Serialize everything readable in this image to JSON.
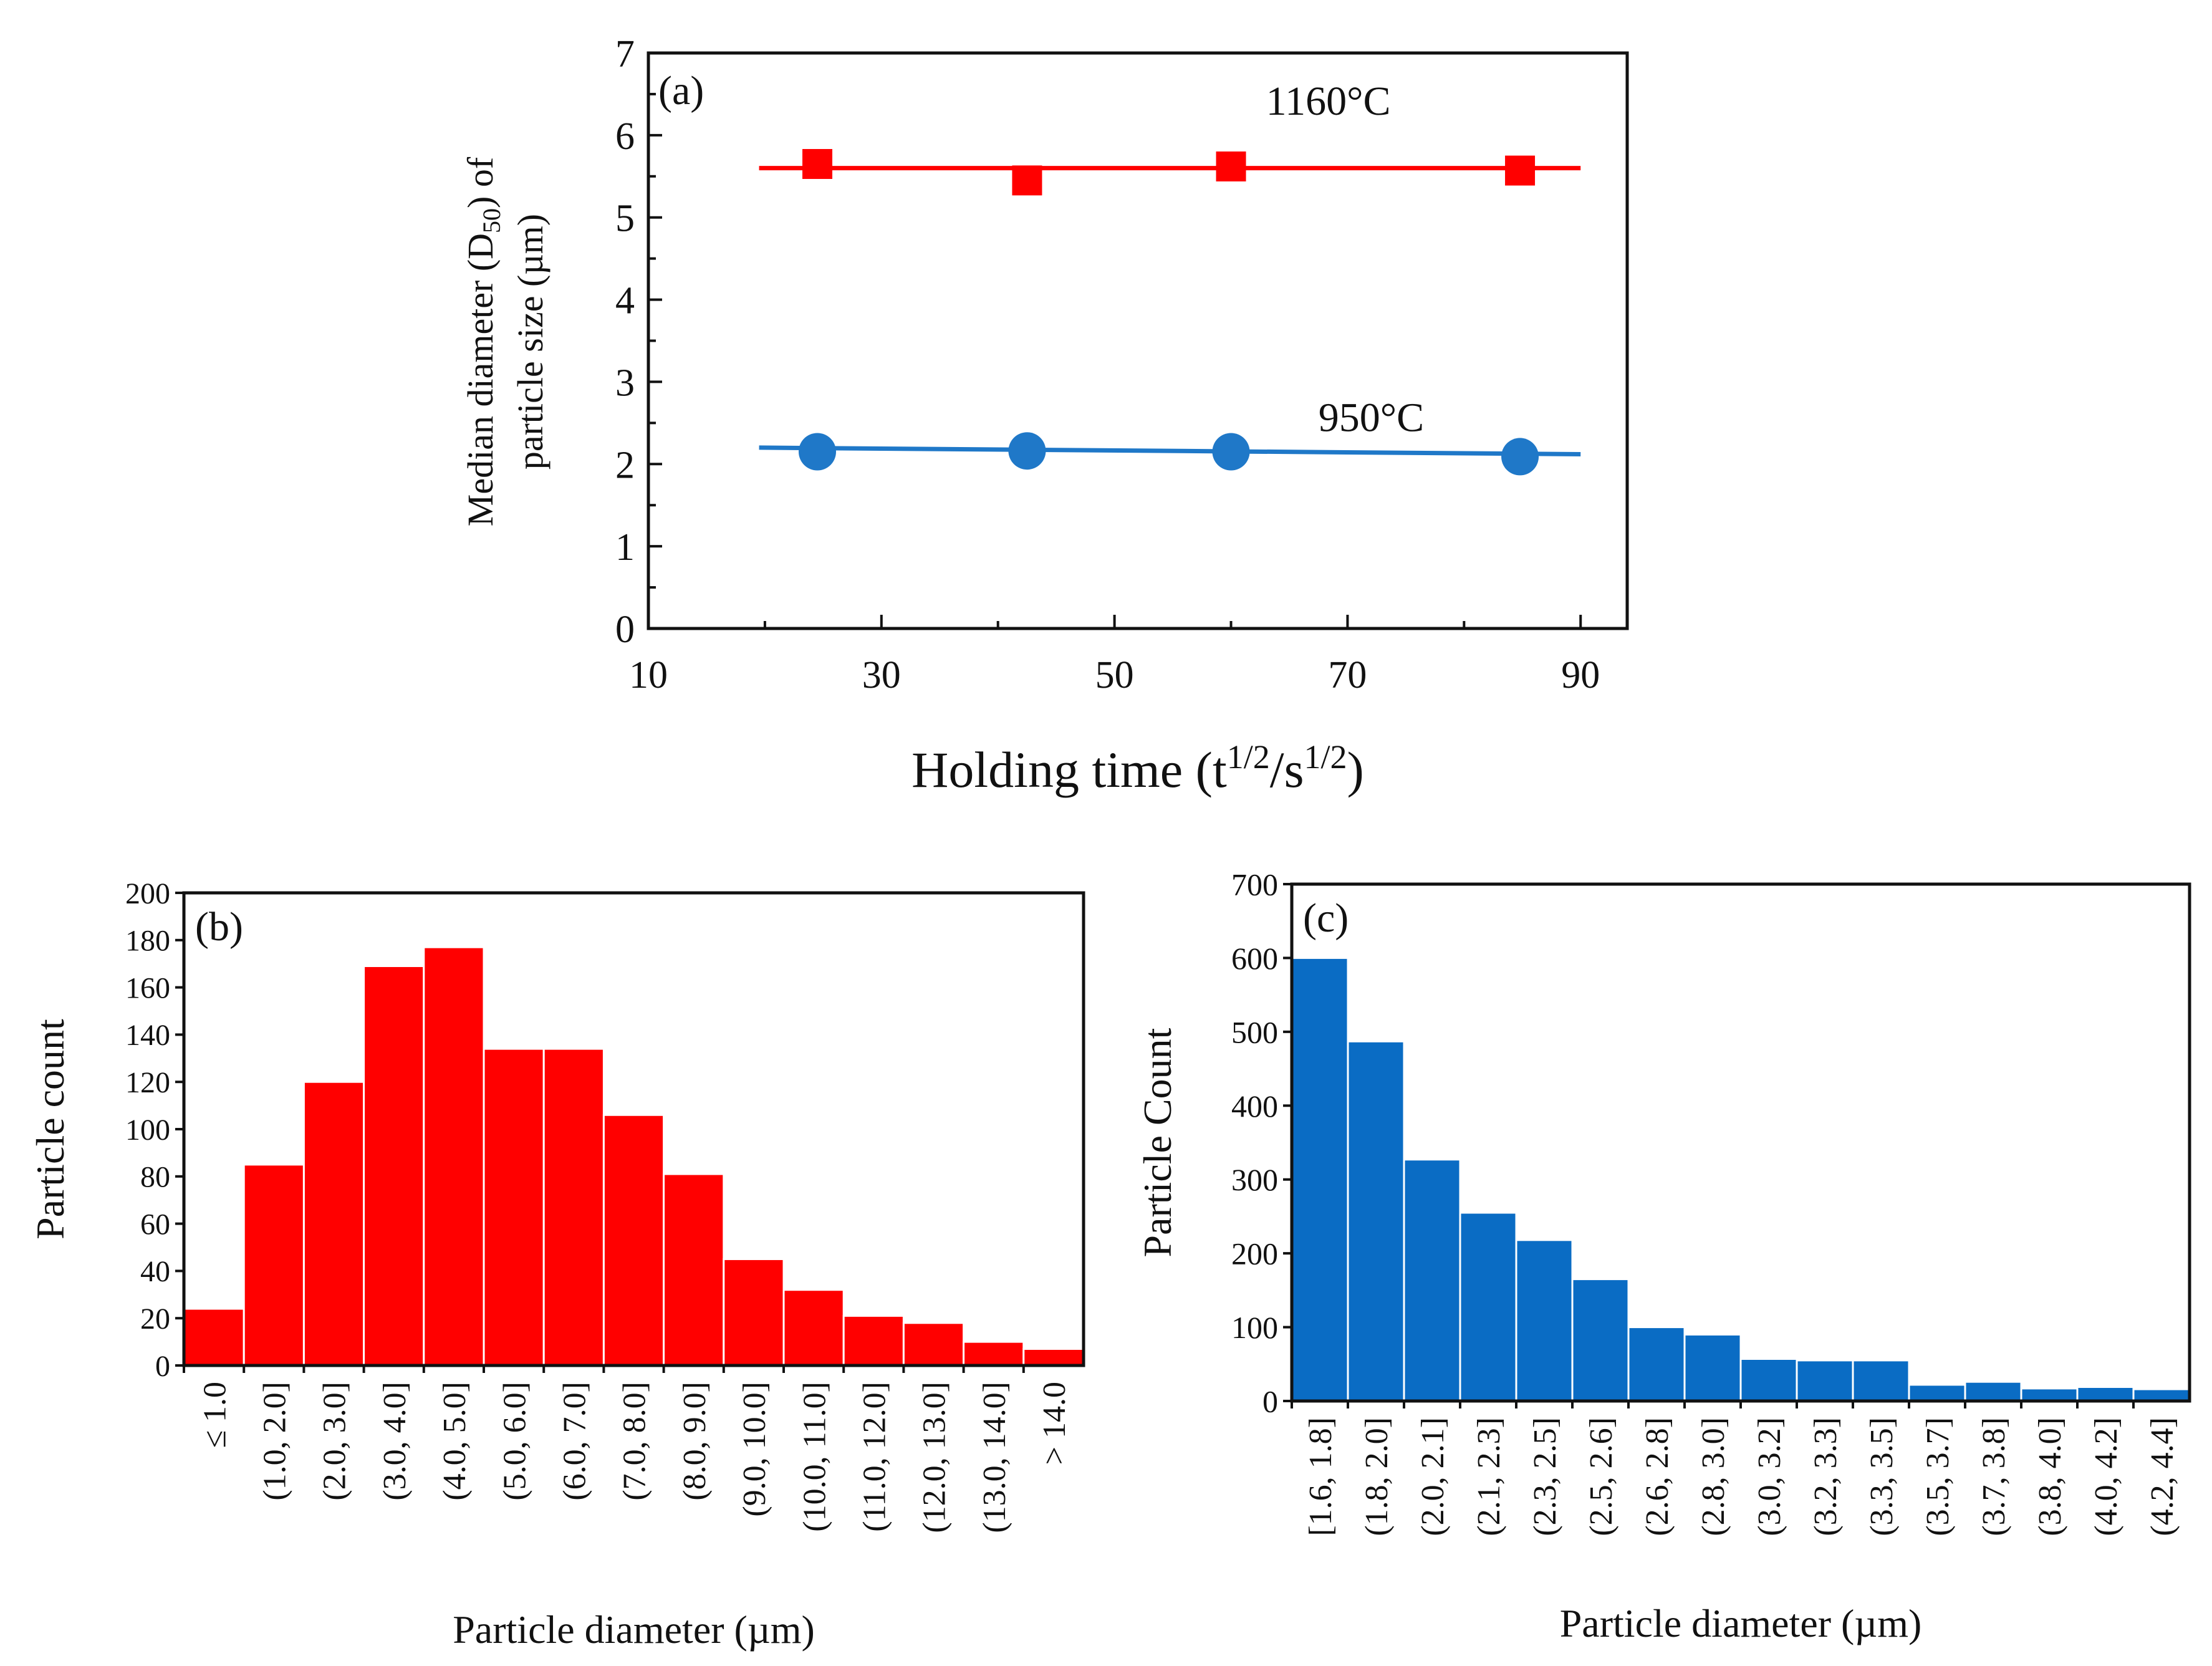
{
  "chart_data": [
    {
      "panel": "(a)",
      "type": "line",
      "title": "",
      "xlabel": "Holding time (t1/2/s1/2)",
      "ylabel_line1": "Median diameter (D50) of",
      "ylabel_line2": "particle size (µm)",
      "xlim": [
        10,
        94
      ],
      "ylim": [
        0,
        7
      ],
      "xticks": [
        "10",
        "30",
        "50",
        "70",
        "90"
      ],
      "yticks": [
        "0",
        "1",
        "2",
        "3",
        "4",
        "5",
        "6",
        "7"
      ],
      "series": [
        {
          "name": "1160°C",
          "color": "#ff0000",
          "marker": "square",
          "x": [
            24.5,
            42.5,
            60,
            84.8
          ],
          "y": [
            5.65,
            5.45,
            5.62,
            5.57
          ],
          "fit_x": [
            19.5,
            90
          ],
          "fit_y": [
            5.6,
            5.6
          ]
        },
        {
          "name": "950°C",
          "color": "#1f78c8",
          "marker": "circle",
          "x": [
            24.5,
            42.5,
            60,
            84.8
          ],
          "y": [
            2.15,
            2.16,
            2.15,
            2.09
          ],
          "fit_x": [
            19.5,
            90
          ],
          "fit_y": [
            2.2,
            2.12
          ]
        }
      ]
    },
    {
      "panel": "(b)",
      "type": "bar",
      "color": "#ff0000",
      "xlabel": "Particle diameter (µm)",
      "ylabel": "Particle count",
      "ylim": [
        0,
        200
      ],
      "yticks": [
        "0",
        "20",
        "40",
        "60",
        "80",
        "100",
        "120",
        "140",
        "160",
        "180",
        "200"
      ],
      "categories": [
        "≤ 1.0",
        "(1.0, 2.0]",
        "(2.0, 3.0]",
        "(3.0, 4.0]",
        "(4.0, 5.0]",
        "(5.0, 6.0]",
        "(6.0, 7.0]",
        "(7.0, 8.0]",
        "(8.0, 9.0]",
        "(9.0, 10.0]",
        "(10.0, 11.0]",
        "(11.0, 12.0]",
        "(12.0, 13.0]",
        "(13.0, 14.0]",
        "> 14.0"
      ],
      "values": [
        24,
        85,
        120,
        169,
        177,
        134,
        134,
        106,
        81,
        45,
        32,
        21,
        18,
        10,
        7
      ]
    },
    {
      "panel": "(c)",
      "type": "bar",
      "color": "#0a6cc4",
      "xlabel": "Particle diameter (µm)",
      "ylabel": "Particle Count",
      "ylim": [
        0,
        700
      ],
      "yticks": [
        "0",
        "100",
        "200",
        "300",
        "400",
        "500",
        "600",
        "700"
      ],
      "categories": [
        "[1.6, 1.8]",
        "(1.8, 2.0]",
        "(2.0, 2.1]",
        "(2.1, 2.3]",
        "(2.3, 2.5]",
        "(2.5, 2.6]",
        "(2.6, 2.8]",
        "(2.8, 3.0]",
        "(3.0, 3.2]",
        "(3.2, 3.3]",
        "(3.3, 3.5]",
        "(3.5, 3.7]",
        "(3.7, 3.8]",
        "(3.8, 4.0]",
        "(4.0, 4.2]",
        "(4.2, 4.4]"
      ],
      "values": [
        600,
        487,
        327,
        255,
        218,
        165,
        100,
        90,
        57,
        55,
        55,
        22,
        26,
        17,
        19,
        16
      ]
    }
  ]
}
